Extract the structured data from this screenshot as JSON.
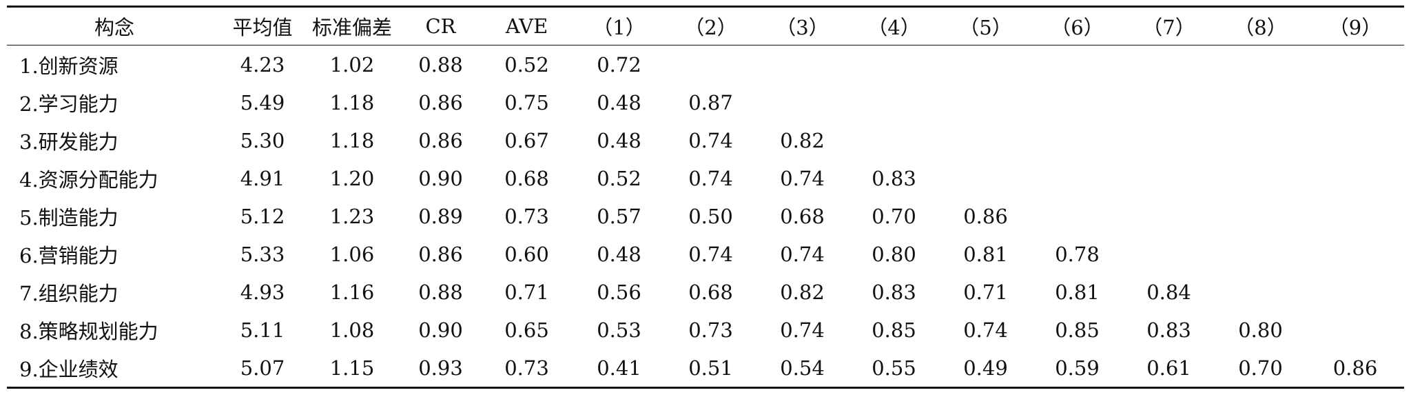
{
  "table": {
    "headers": [
      "构念",
      "平均值",
      "标准偏差",
      "CR",
      "AVE",
      "（1）",
      "（2）",
      "（3）",
      "（4）",
      "（5）",
      "（6）",
      "（7）",
      "（8）",
      "（9）"
    ],
    "rows": [
      [
        "1.创新资源",
        "4.23",
        "1.02",
        "0.88",
        "0.52",
        "0.72",
        "",
        "",
        "",
        "",
        "",
        "",
        "",
        ""
      ],
      [
        "2.学习能力",
        "5.49",
        "1.18",
        "0.86",
        "0.75",
        "0.48",
        "0.87",
        "",
        "",
        "",
        "",
        "",
        "",
        ""
      ],
      [
        "3.研发能力",
        "5.30",
        "1.18",
        "0.86",
        "0.67",
        "0.48",
        "0.74",
        "0.82",
        "",
        "",
        "",
        "",
        "",
        ""
      ],
      [
        "4.资源分配能力",
        "4.91",
        "1.20",
        "0.90",
        "0.68",
        "0.52",
        "0.74",
        "0.74",
        "0.83",
        "",
        "",
        "",
        "",
        ""
      ],
      [
        "5.制造能力",
        "5.12",
        "1.23",
        "0.89",
        "0.73",
        "0.57",
        "0.50",
        "0.68",
        "0.70",
        "0.86",
        "",
        "",
        "",
        ""
      ],
      [
        "6.营销能力",
        "5.33",
        "1.06",
        "0.86",
        "0.60",
        "0.48",
        "0.74",
        "0.74",
        "0.80",
        "0.81",
        "0.78",
        "",
        "",
        ""
      ],
      [
        "7.组织能力",
        "4.93",
        "1.16",
        "0.88",
        "0.71",
        "0.56",
        "0.68",
        "0.82",
        "0.83",
        "0.71",
        "0.81",
        "0.84",
        "",
        ""
      ],
      [
        "8.策略规划能力",
        "5.11",
        "1.08",
        "0.90",
        "0.65",
        "0.53",
        "0.73",
        "0.74",
        "0.85",
        "0.74",
        "0.85",
        "0.83",
        "0.80",
        ""
      ],
      [
        "9.企业绩效",
        "5.07",
        "1.15",
        "0.93",
        "0.73",
        "0.41",
        "0.51",
        "0.54",
        "0.55",
        "0.49",
        "0.59",
        "0.61",
        "0.70",
        "0.86"
      ]
    ]
  }
}
